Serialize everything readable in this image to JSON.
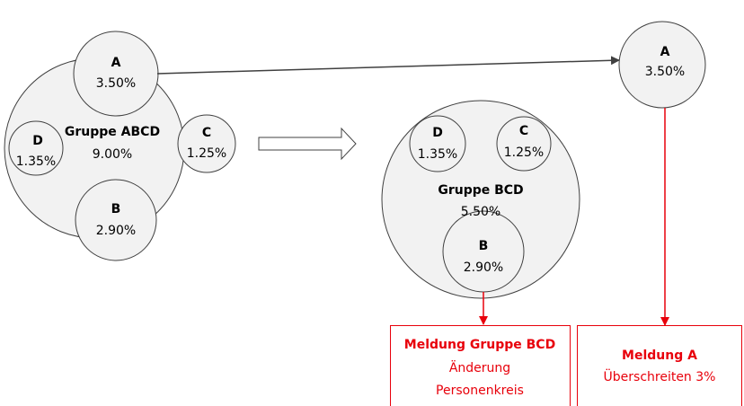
{
  "left_group": {
    "label": "Gruppe ABCD",
    "value": "9.00%",
    "members": [
      {
        "label": "A",
        "value": "3.50%"
      },
      {
        "label": "D",
        "value": "1.35%"
      },
      {
        "label": "C",
        "value": "1.25%"
      },
      {
        "label": "B",
        "value": "2.90%"
      }
    ]
  },
  "right_group": {
    "label": "Gruppe BCD",
    "value": "5.50%",
    "members": [
      {
        "label": "D",
        "value": "1.35%"
      },
      {
        "label": "C",
        "value": "1.25%"
      },
      {
        "label": "B",
        "value": "2.90%"
      }
    ]
  },
  "single": {
    "label": "A",
    "value": "3.50%"
  },
  "messages": [
    {
      "title": "Meldung Gruppe BCD",
      "lines": [
        "Änderung",
        "Personenkreis"
      ]
    },
    {
      "title": "Meldung A",
      "lines": [
        "Überschreiten 3%"
      ]
    }
  ]
}
